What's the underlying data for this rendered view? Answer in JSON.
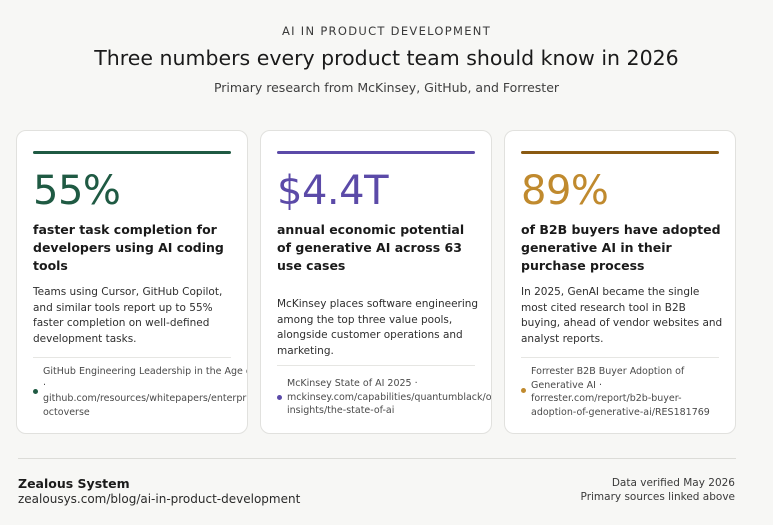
{
  "header": {
    "eyebrow": "AI IN PRODUCT DEVELOPMENT",
    "title": "Three numbers every product team should know in 2026",
    "subtitle": "Primary research from McKinsey, GitHub, and Forrester"
  },
  "cards": [
    {
      "accent": "#1f5a43",
      "stat": "55%",
      "headline": "faster task completion for developers using AI coding tools",
      "body": "Teams using Cursor, GitHub Copilot, and similar tools report up to 55% faster completion on well-defined development tasks.",
      "source_lines": [
        "GitHub Engineering Leadership in the Age of",
        "·",
        "github.com/resources/whitepapers/enterpr",
        "octoverse"
      ]
    },
    {
      "accent": "#5b4aa8",
      "stat": "$4.4T",
      "headline": "annual economic potential of generative AI across 63 use cases",
      "body": "McKinsey places software engineering among the top three value pools, alongside customer operations and marketing.",
      "source_lines": [
        "McKinsey State of AI 2025 ·",
        "mckinsey.com/capabilities/quantumblack/o",
        "insights/the-state-of-ai"
      ]
    },
    {
      "accent": "#8a5a12",
      "stat_color": "#c08a2e",
      "stat": "89%",
      "headline": "of B2B buyers have adopted generative AI in their purchase process",
      "body": "In 2025, GenAI became the single most cited research tool in B2B buying, ahead of vendor websites and analyst reports.",
      "source_lines": [
        "Forrester B2B Buyer Adoption of",
        "Generative AI ·",
        "forrester.com/report/b2b-buyer-",
        "adoption-of-generative-ai/RES181769"
      ]
    }
  ],
  "footer": {
    "brand": "Zealous System",
    "url": "zealousys.com/blog/ai-in-product-development",
    "verified": "Data verified May 2026",
    "primary": "Primary sources linked above"
  }
}
